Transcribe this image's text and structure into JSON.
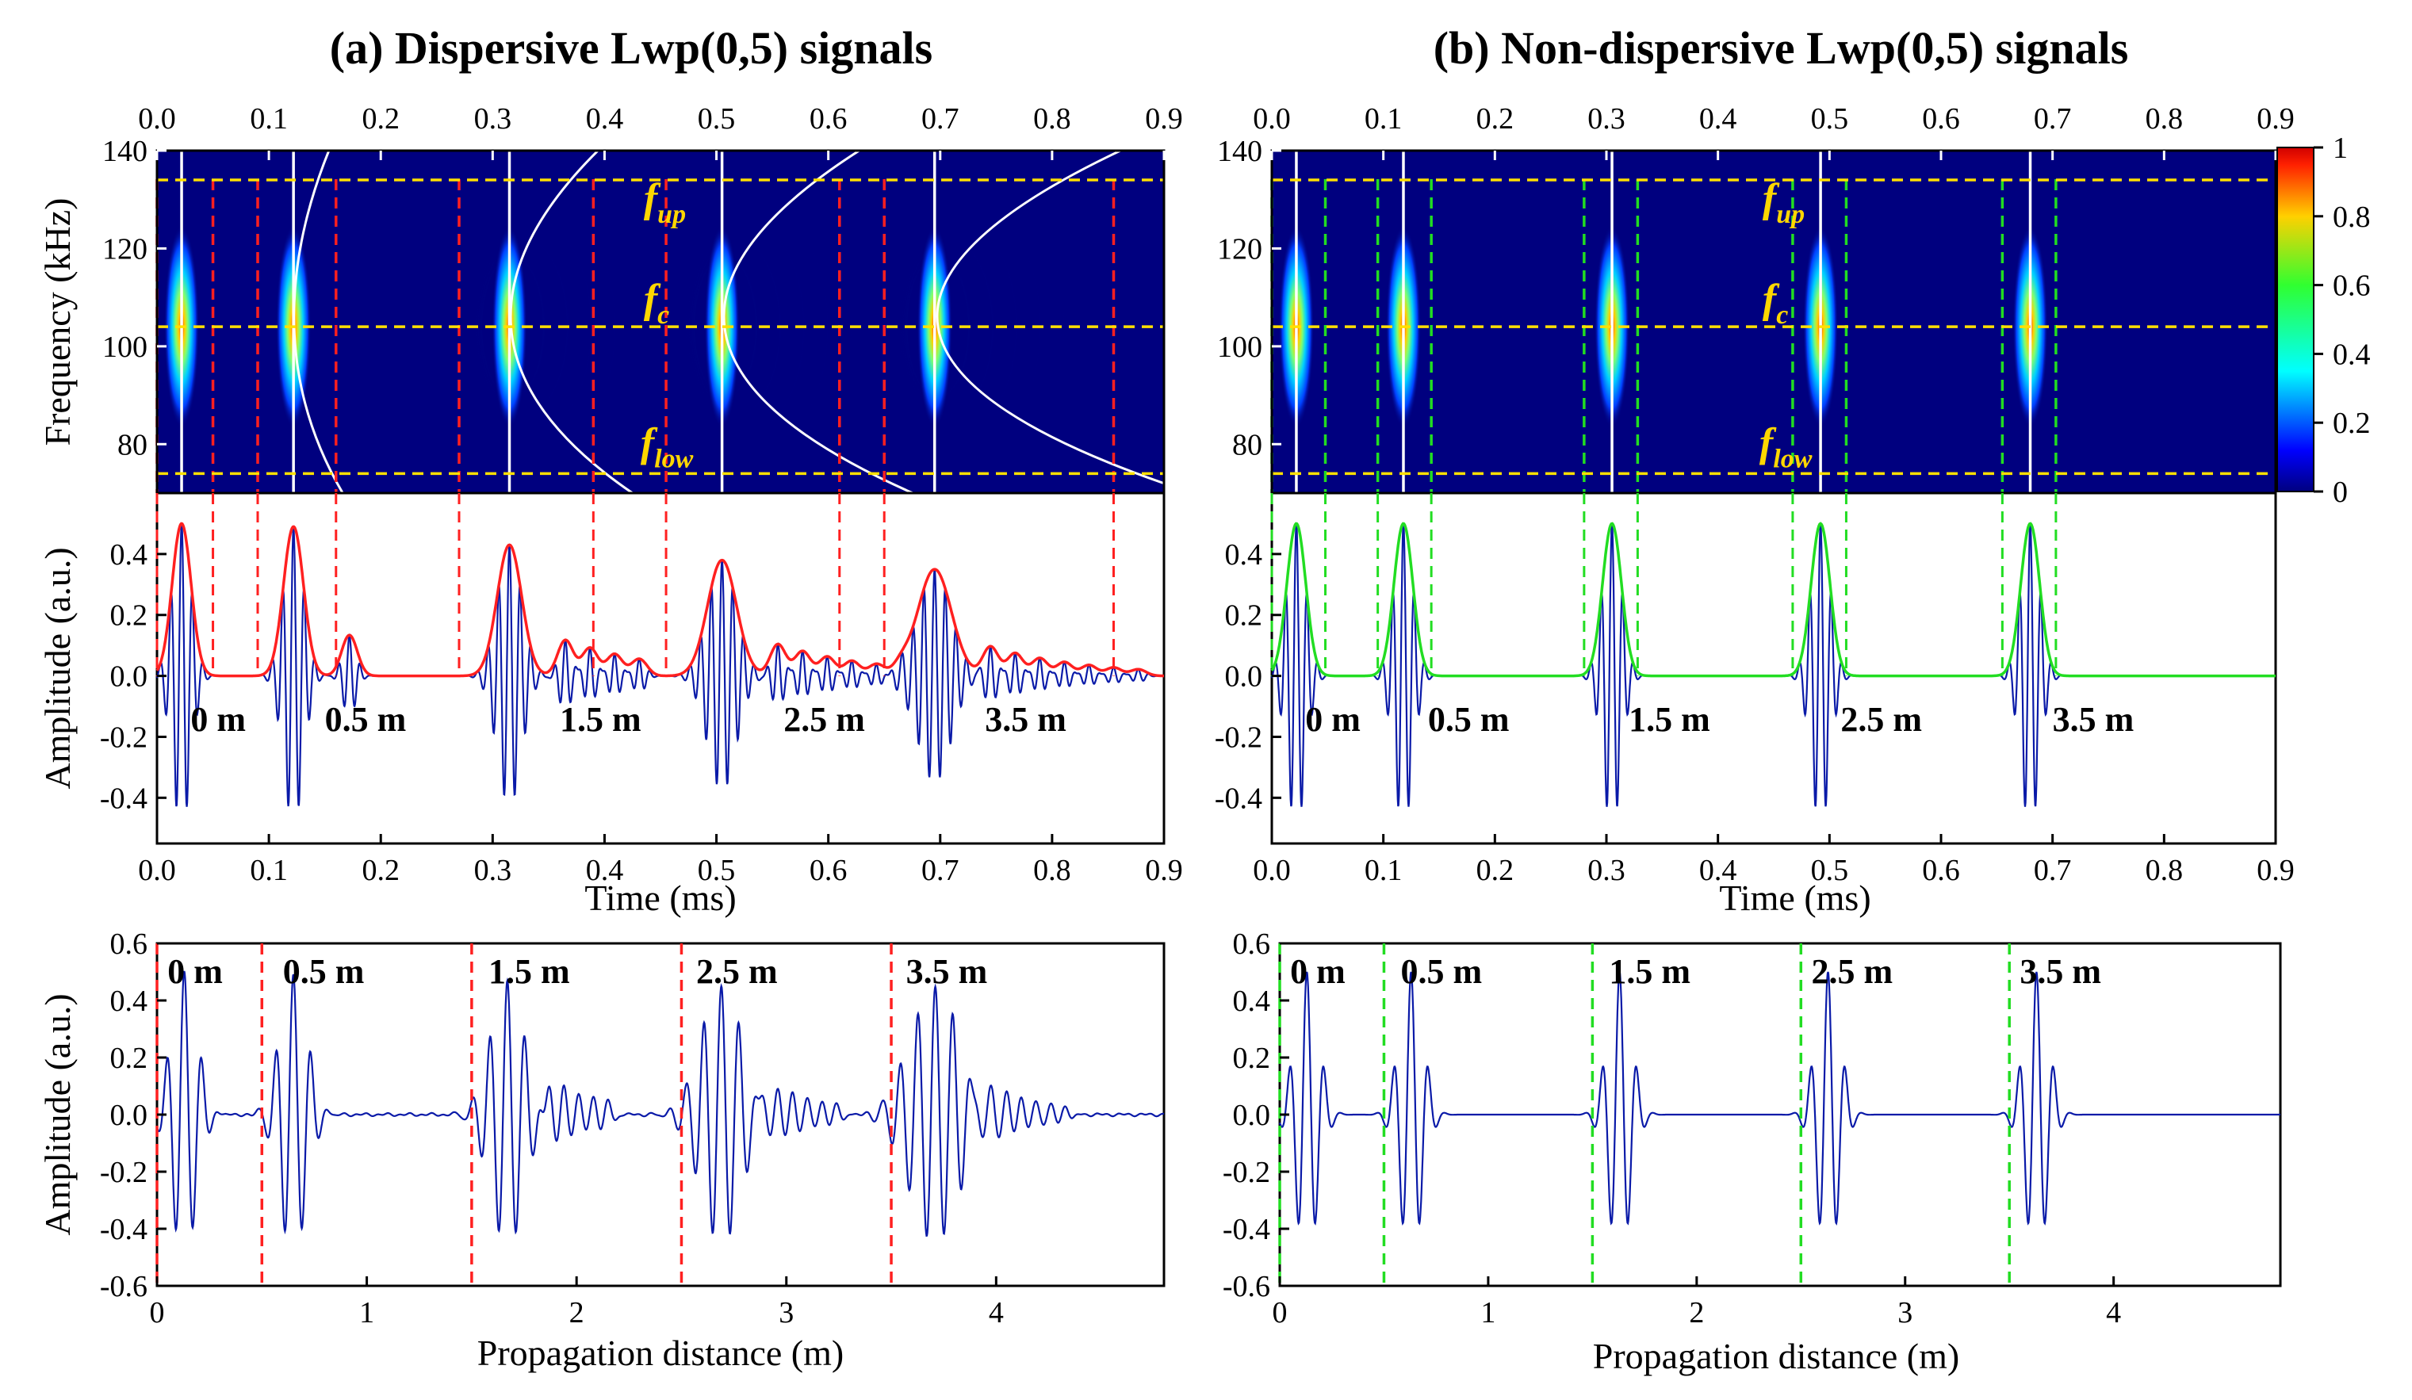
{
  "colors": {
    "background_map": "#00007f",
    "signal": "#0a1aa8",
    "dispersive_envelope": "#ff2020",
    "dispersive_marker": "#ff2020",
    "nondispersive_envelope": "#22dd22",
    "nondispersive_marker": "#22dd22",
    "band_line": "#ffe000",
    "ridge": "#ffffff"
  },
  "chart_data": [
    {
      "type": "heatmap",
      "panel": "a-top",
      "title": "(a) Dispersive Lwp(0,5) signals",
      "ylabel": "Frequency (kHz)",
      "xlim": [
        0,
        0.9
      ],
      "ylim": [
        70,
        140
      ],
      "x_ticks": [
        "0.0",
        "0.1",
        "0.2",
        "0.3",
        "0.4",
        "0.5",
        "0.6",
        "0.7",
        "0.8",
        "0.9"
      ],
      "y_ticks": [
        "80",
        "100",
        "120",
        "140"
      ],
      "band_labels": [
        {
          "main": "f",
          "sub": "up",
          "freq": 134
        },
        {
          "main": "f",
          "sub": "c",
          "freq": 104
        },
        {
          "main": "f",
          "sub": "low",
          "freq": 74
        }
      ],
      "packets_center_time_ms": [
        0.022,
        0.122,
        0.315,
        0.505,
        0.695
      ],
      "packet_ripples": [
        0,
        0,
        4,
        6,
        8
      ],
      "ridge_time_ms": [
        0.022,
        0.122,
        0.315,
        0.505,
        0.695
      ],
      "ridge_curvature": [
        0,
        0.08,
        0.2,
        0.31,
        0.42
      ],
      "window_markers_ms": [
        0.0,
        0.05,
        0.09,
        0.16,
        0.27,
        0.39,
        0.455,
        0.61,
        0.65,
        0.855
      ]
    },
    {
      "type": "line",
      "panel": "a-middle",
      "xlabel": "Time (ms)",
      "ylabel": "Amplitude (a.u.)",
      "xlim": [
        0,
        0.9
      ],
      "ylim": [
        -0.55,
        0.6
      ],
      "x_ticks": [
        "0.0",
        "0.1",
        "0.2",
        "0.3",
        "0.4",
        "0.5",
        "0.6",
        "0.7",
        "0.8",
        "0.9"
      ],
      "y_ticks": [
        "-0.4",
        "-0.2",
        "0.0",
        "0.2",
        "0.4"
      ],
      "distance_labels": [
        "0 m",
        "0.5 m",
        "1.5 m",
        "2.5 m",
        "3.5 m"
      ],
      "packet_center_ms": [
        0.022,
        0.122,
        0.315,
        0.505,
        0.695
      ],
      "packet_peak": [
        0.5,
        0.49,
        0.43,
        0.38,
        0.35
      ],
      "window_markers_ms": [
        0.0,
        0.05,
        0.09,
        0.16,
        0.27,
        0.39,
        0.455,
        0.61,
        0.65,
        0.855
      ]
    },
    {
      "type": "line",
      "panel": "a-bottom",
      "xlabel": "Propagation distance (m)",
      "ylabel": "Amplitude (a.u.)",
      "xlim": [
        0,
        4.8
      ],
      "ylim": [
        -0.6,
        0.6
      ],
      "x_ticks": [
        "0",
        "1",
        "2",
        "3",
        "4"
      ],
      "y_ticks": [
        "-0.6",
        "-0.4",
        "-0.2",
        "0.0",
        "0.2",
        "0.4",
        "0.6"
      ],
      "distance_labels": [
        "0 m",
        "0.5 m",
        "1.5 m",
        "2.5 m",
        "3.5 m"
      ],
      "marker_positions_m": [
        0,
        0.5,
        1.5,
        2.5,
        3.5
      ]
    },
    {
      "type": "heatmap",
      "panel": "b-top",
      "title": "(b)  Non-dispersive Lwp(0,5) signals",
      "ylabel": "Frequency (kHz)",
      "xlim": [
        0,
        0.9
      ],
      "ylim": [
        70,
        140
      ],
      "x_ticks": [
        "0.0",
        "0.1",
        "0.2",
        "0.3",
        "0.4",
        "0.5",
        "0.6",
        "0.7",
        "0.8",
        "0.9"
      ],
      "y_ticks": [
        "80",
        "100",
        "120",
        "140"
      ],
      "colorbar_ticks": [
        "1",
        "0.8",
        "0.6",
        "0.4",
        "0.2",
        "0"
      ],
      "band_labels": [
        {
          "main": "f",
          "sub": "up",
          "freq": 134
        },
        {
          "main": "f",
          "sub": "c",
          "freq": 104
        },
        {
          "main": "f",
          "sub": "low",
          "freq": 74
        }
      ],
      "packets_center_time_ms": [
        0.022,
        0.118,
        0.305,
        0.492,
        0.68
      ],
      "window_markers_ms": [
        0.0,
        0.048,
        0.095,
        0.143,
        0.28,
        0.328,
        0.467,
        0.515,
        0.655,
        0.703
      ]
    },
    {
      "type": "line",
      "panel": "b-middle",
      "xlabel": "Time (ms)",
      "ylabel": "",
      "xlim": [
        0,
        0.9
      ],
      "ylim": [
        -0.55,
        0.6
      ],
      "x_ticks": [
        "0.0",
        "0.1",
        "0.2",
        "0.3",
        "0.4",
        "0.5",
        "0.6",
        "0.7",
        "0.8",
        "0.9"
      ],
      "y_ticks": [
        "-0.4",
        "-0.2",
        "0.0",
        "0.2",
        "0.4"
      ],
      "distance_labels": [
        "0 m",
        "0.5 m",
        "1.5 m",
        "2.5 m",
        "3.5 m"
      ],
      "packet_center_ms": [
        0.022,
        0.118,
        0.305,
        0.492,
        0.68
      ],
      "packet_peak": [
        0.5,
        0.5,
        0.5,
        0.5,
        0.5
      ],
      "window_markers_ms": [
        0.0,
        0.048,
        0.095,
        0.143,
        0.28,
        0.328,
        0.467,
        0.515,
        0.655,
        0.703
      ]
    },
    {
      "type": "line",
      "panel": "b-bottom",
      "xlabel": "Propagation distance (m)",
      "ylabel": "",
      "xlim": [
        0,
        4.8
      ],
      "ylim": [
        -0.6,
        0.6
      ],
      "x_ticks": [
        "0",
        "1",
        "2",
        "3",
        "4"
      ],
      "y_ticks": [
        "-0.6",
        "-0.4",
        "-0.2",
        "0.0",
        "0.2",
        "0.4",
        "0.6"
      ],
      "distance_labels": [
        "0 m",
        "0.5 m",
        "1.5 m",
        "2.5 m",
        "3.5 m"
      ],
      "marker_positions_m": [
        0,
        0.5,
        1.5,
        2.5,
        3.5
      ]
    }
  ]
}
